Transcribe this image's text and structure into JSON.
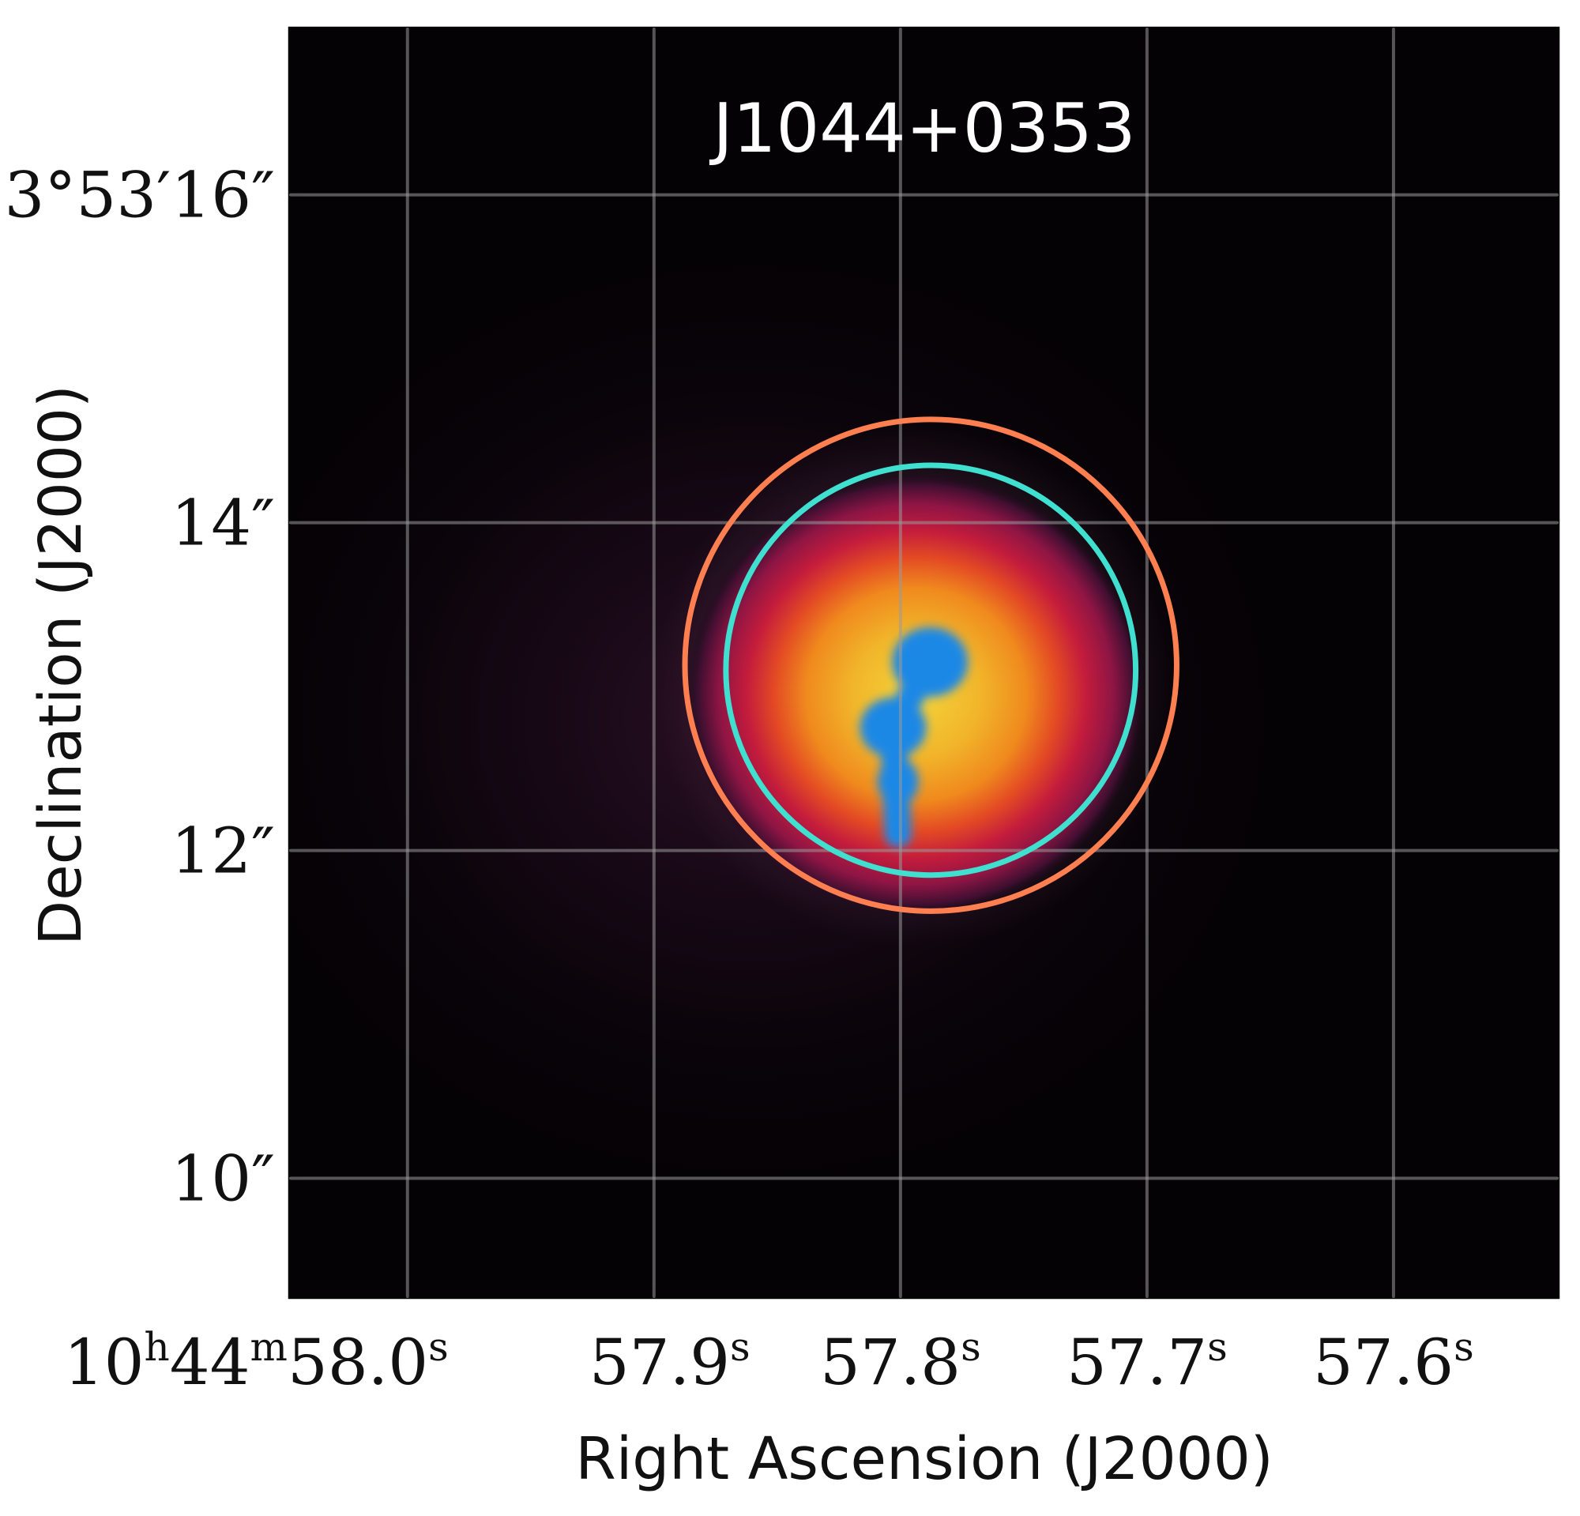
{
  "chart_data": {
    "type": "heatmap",
    "title": "J1044+0353",
    "xlabel": "Right Ascension (J2000)",
    "ylabel": "Declination (J2000)",
    "x_axis": {
      "unit": "seconds of RA (10h44m)",
      "range": [
        58.048,
        57.533
      ],
      "inverted": true,
      "ticks": [
        {
          "value": 58.0,
          "label_parts": [
            "10",
            "h",
            "44",
            "m",
            "58.0",
            "s"
          ]
        },
        {
          "value": 57.9,
          "label_parts": [
            "57.9",
            "s"
          ]
        },
        {
          "value": 57.8,
          "label_parts": [
            "57.8",
            "s"
          ]
        },
        {
          "value": 57.7,
          "label_parts": [
            "57.7",
            "s"
          ]
        },
        {
          "value": 57.6,
          "label_parts": [
            "57.6",
            "s"
          ]
        }
      ]
    },
    "y_axis": {
      "unit": "arcsec of Dec (3°53′)",
      "range": [
        9.27,
        17.02
      ],
      "ticks": [
        {
          "value": 16,
          "label": "3°53′16″"
        },
        {
          "value": 14,
          "label": "14″"
        },
        {
          "value": 12,
          "label": "12″"
        },
        {
          "value": 10,
          "label": "10″"
        }
      ]
    },
    "grid": true,
    "colormap": "dark-purple-red-orange-yellow",
    "background_color": "#050205",
    "grid_color": "#9a9a9a",
    "source": {
      "center_ra_s": 57.8,
      "center_dec_arcsec": 13.0,
      "core_color": "#1e88e5",
      "knots": [
        {
          "ra_s": 57.788,
          "dec_arcsec": 13.15
        },
        {
          "ra_s": 57.803,
          "dec_arcsec": 12.75
        },
        {
          "ra_s": 57.801,
          "dec_arcsec": 12.42
        }
      ]
    },
    "apertures": [
      {
        "name": "outer aperture",
        "color": "#ff7f50",
        "center_ra_s": 57.7877,
        "center_dec_arcsec": 13.13,
        "radius_arcsec": 1.5
      },
      {
        "name": "inner aperture",
        "color": "#40e0d0",
        "center_ra_s": 57.7877,
        "center_dec_arcsec": 13.1,
        "radius_arcsec": 1.25
      }
    ]
  }
}
